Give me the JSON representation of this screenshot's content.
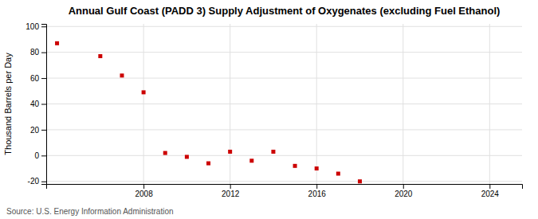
{
  "chart_data": {
    "type": "scatter",
    "title": "Annual Gulf Coast (PADD 3) Supply Adjustment of Oxygenates (excluding Fuel Ethanol)",
    "ylabel": "Thousand Barrels per Day",
    "source": "Source: U.S. Energy Information Administration",
    "x": [
      2004,
      2006,
      2007,
      2008,
      2009,
      2010,
      2011,
      2012,
      2013,
      2014,
      2015,
      2016,
      2017,
      2018
    ],
    "values": [
      87,
      77,
      62,
      49,
      2,
      -1,
      -6,
      3,
      -4,
      3,
      -8,
      -10,
      -14,
      -20
    ],
    "color": "#cc0000",
    "marker": "square",
    "xlim": [
      2003.5,
      2025.5
    ],
    "ylim": [
      -22,
      102
    ],
    "xticks": [
      2008,
      2012,
      2016,
      2020,
      2024
    ],
    "yticks": [
      -20,
      0,
      20,
      40,
      60,
      80,
      100
    ],
    "grid": true
  }
}
